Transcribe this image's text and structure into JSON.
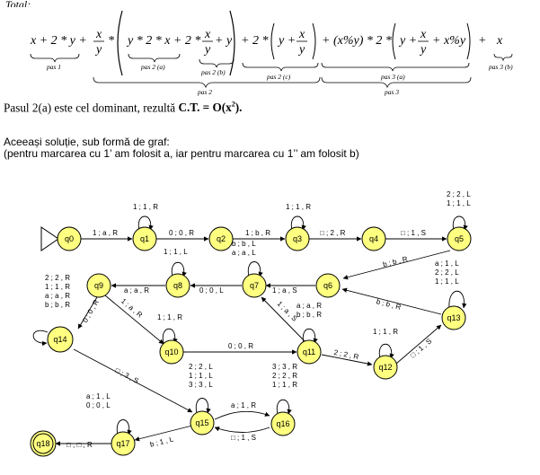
{
  "header": {
    "cut_word": "Total:"
  },
  "formula": {
    "parts": {
      "p1": "x + 2 * y",
      "p2_main": "+ x/y * ( y * 2 * x + 2 * x/y + y ) + 2 * ( y + x/y )",
      "p3": "+ (x%y) * 2 * ( y + x/y + x%y ) + x"
    },
    "labels": {
      "pas1": "pas 1",
      "pas2a": "pas 2 (a)",
      "pas2b": "pas 2 (b)",
      "pas2c": "pas 2 (c)",
      "pas2": "pas 2",
      "pas3a": "pas 3 (a)",
      "pas3": "pas 3",
      "pas3b": "pas 3 (b)"
    }
  },
  "text": {
    "line1_prefix": "Pasul 2(a) este cel dominant, rezultă ",
    "line1_bold": "C.T. = O(x",
    "line1_sup": "2",
    "line1_end": ").",
    "line2": "Aceeași soluție, sub formă de graf:",
    "line3": "(pentru marcarea cu 1’ am folosit a, iar pentru marcarea cu 1’’ am folosit b)"
  },
  "graph": {
    "node_color": "#ffff80",
    "nodes": [
      "q0",
      "q1",
      "q2",
      "q3",
      "q4",
      "q5",
      "q6",
      "q7",
      "q8",
      "q9",
      "q10",
      "q11",
      "q12",
      "q13",
      "q14",
      "q15",
      "q16",
      "q17",
      "q18"
    ],
    "edge_labels": {
      "q0_q1": "1 ; a , R",
      "q1_loop": "1 ; 1 , R",
      "q1_q2": "0 ; 0 , R",
      "q2_q3": "1 ; b , R",
      "q3_loop": "1 ; 1 , R",
      "q3_q4": "□ ; 2 , R",
      "q4_q5": "□ ; 1 , S",
      "q5_loop": [
        "2 ; 2 , L",
        "1 ; 1 , L"
      ],
      "q5_q6": "b ; b , R",
      "q6_q7": "1 ; a , S",
      "q7_loop": [
        "b ; b , L",
        "a ; a , L"
      ],
      "q7_q8": "0 ; 0 , L",
      "q8_loop": "1 ; 1 , L",
      "q8_q9": "a ; a , R",
      "q9_q10": "1 ; a , R",
      "q9_q14": "0 ; 0 , R",
      "q14_loop": [
        "2 ; 2 , R",
        "1 ; 1 , R",
        "a ; a , R",
        "b ; b , R"
      ],
      "q10_loop": "1 ; 1 , R",
      "q10_q11": "0 ; 0 , R",
      "q11_q7": "1 ; a , S",
      "q11_loop": [
        "a ; a , R",
        "b ; b , R"
      ],
      "q11_q12": "2 ; 2 , R",
      "q12_loop": "1 ; 1 , R",
      "q12_q13": "□ ; 1 , S",
      "q13_loop": [
        "a ; 1 , L",
        "2 ; 2 , L",
        "1 ; 1 , L"
      ],
      "q13_q6": "b ; b , R",
      "q14_q15": "□ ; 3 , S",
      "q15_loop": [
        "2 ; 2 , L",
        "1 ; 1 , L",
        "3 ; 3 , L"
      ],
      "q15_q16": "a ; 1 , R",
      "q16_q15": "□ ; 1 , S",
      "q16_loop": [
        "3 ; 3 , R",
        "2 ; 2 , R",
        "1 ; 1 , R"
      ],
      "q15_q17": "b ; 1 , L",
      "q17_loop": [
        "a ; 1 , L",
        "0 ; 0 , L"
      ],
      "q17_q18": "□ ; □ , R"
    }
  }
}
